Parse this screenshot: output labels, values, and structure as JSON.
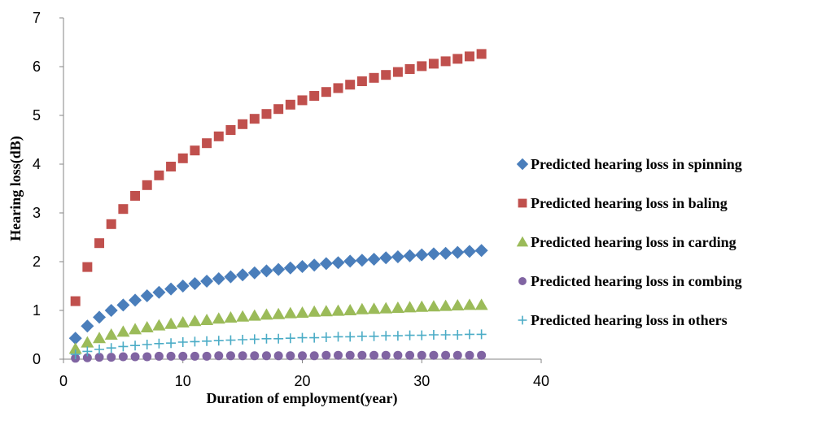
{
  "chart_data": {
    "type": "scatter",
    "title": "",
    "xlabel": "Duration of employment(year)",
    "ylabel": "Hearing loss(dB)",
    "xlim": [
      0,
      40
    ],
    "ylim": [
      0,
      7
    ],
    "xticks": [
      0,
      10,
      20,
      30,
      40
    ],
    "yticks": [
      0,
      1,
      2,
      3,
      4,
      5,
      6,
      7
    ],
    "grid": false,
    "legend_position": "right",
    "x": [
      1,
      2,
      3,
      4,
      5,
      6,
      7,
      8,
      9,
      10,
      11,
      12,
      13,
      14,
      15,
      16,
      17,
      18,
      19,
      20,
      21,
      22,
      23,
      24,
      25,
      26,
      27,
      28,
      29,
      30,
      31,
      32,
      33,
      34,
      35
    ],
    "series": [
      {
        "name": "Predicted hearing loss in spinning",
        "marker": "diamond",
        "color": "#4A7EBB",
        "values": [
          0.43,
          0.68,
          0.86,
          1.0,
          1.11,
          1.21,
          1.3,
          1.37,
          1.44,
          1.5,
          1.55,
          1.6,
          1.65,
          1.69,
          1.73,
          1.77,
          1.81,
          1.84,
          1.87,
          1.9,
          1.93,
          1.96,
          1.98,
          2.01,
          2.03,
          2.05,
          2.08,
          2.1,
          2.12,
          2.14,
          2.16,
          2.17,
          2.19,
          2.21,
          2.23
        ]
      },
      {
        "name": "Predicted hearing loss in baling",
        "marker": "square",
        "color": "#C0504D",
        "values": [
          1.19,
          1.89,
          2.38,
          2.77,
          3.08,
          3.35,
          3.57,
          3.77,
          3.95,
          4.12,
          4.28,
          4.43,
          4.57,
          4.7,
          4.82,
          4.93,
          5.03,
          5.13,
          5.22,
          5.31,
          5.4,
          5.48,
          5.56,
          5.63,
          5.7,
          5.77,
          5.83,
          5.89,
          5.95,
          6.01,
          6.06,
          6.11,
          6.16,
          6.21,
          6.26
        ]
      },
      {
        "name": "Predicted hearing loss in carding",
        "marker": "triangle",
        "color": "#9BBB59",
        "values": [
          0.21,
          0.34,
          0.43,
          0.5,
          0.56,
          0.61,
          0.65,
          0.69,
          0.72,
          0.75,
          0.78,
          0.8,
          0.83,
          0.85,
          0.87,
          0.89,
          0.91,
          0.92,
          0.94,
          0.95,
          0.97,
          0.98,
          0.99,
          1.0,
          1.02,
          1.03,
          1.04,
          1.05,
          1.06,
          1.07,
          1.08,
          1.09,
          1.1,
          1.11,
          1.11
        ]
      },
      {
        "name": "Predicted hearing loss in combing",
        "marker": "circle",
        "color": "#8064A2",
        "values": [
          0.02,
          0.03,
          0.04,
          0.04,
          0.05,
          0.05,
          0.05,
          0.06,
          0.06,
          0.06,
          0.06,
          0.06,
          0.07,
          0.07,
          0.07,
          0.07,
          0.07,
          0.07,
          0.07,
          0.07,
          0.07,
          0.08,
          0.08,
          0.08,
          0.08,
          0.08,
          0.08,
          0.08,
          0.08,
          0.08,
          0.08,
          0.08,
          0.08,
          0.08,
          0.08
        ]
      },
      {
        "name": "Predicted hearing loss in others",
        "marker": "plus",
        "color": "#4BACC6",
        "values": [
          0.1,
          0.16,
          0.2,
          0.23,
          0.26,
          0.28,
          0.3,
          0.32,
          0.33,
          0.35,
          0.36,
          0.37,
          0.38,
          0.39,
          0.4,
          0.41,
          0.42,
          0.42,
          0.43,
          0.44,
          0.44,
          0.45,
          0.46,
          0.46,
          0.47,
          0.47,
          0.48,
          0.48,
          0.49,
          0.49,
          0.5,
          0.5,
          0.5,
          0.51,
          0.51
        ]
      }
    ]
  }
}
